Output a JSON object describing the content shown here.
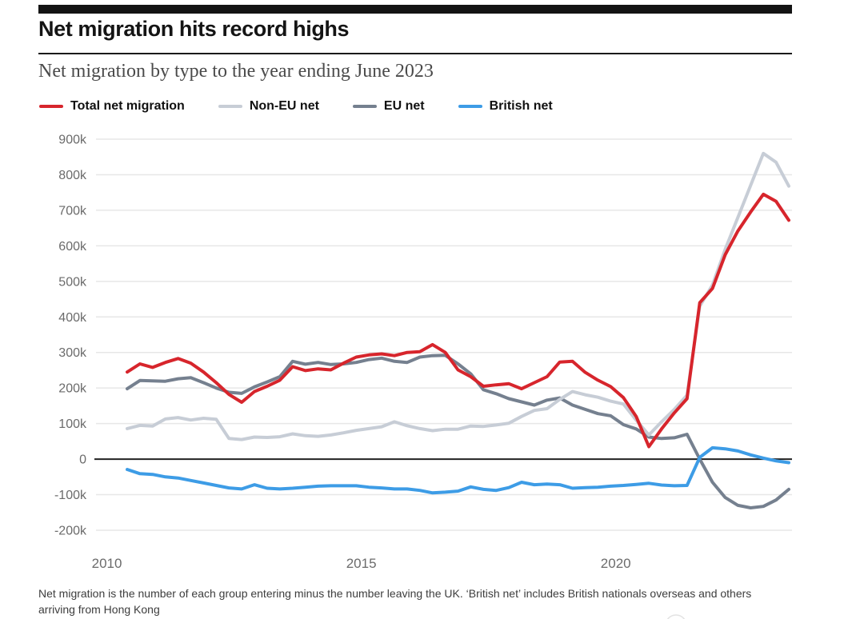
{
  "header": {
    "headline": "Net migration hits record highs",
    "subtitle": "Net migration by type to the year ending June 2023"
  },
  "footnote": {
    "text": "Net migration is the number of each group entering minus the number leaving the UK. ‘British net’ includes British nationals overseas and others arriving from Hong Kong"
  },
  "chart_data": {
    "type": "line",
    "title": "Net migration hits record highs",
    "subtitle": "Net migration by type to the year ending June 2023",
    "unit": "thousands of people, year-ending quarterly values",
    "x_start": 2010.4,
    "x_step": 0.25,
    "x_end": 2023.4,
    "ylim": [
      -200,
      900
    ],
    "grid": true,
    "legend_position": "top",
    "y_ticks": [
      {
        "label": "900k",
        "value": 900
      },
      {
        "label": "800k",
        "value": 800
      },
      {
        "label": "700k",
        "value": 700
      },
      {
        "label": "600k",
        "value": 600
      },
      {
        "label": "500k",
        "value": 500
      },
      {
        "label": "400k",
        "value": 400
      },
      {
        "label": "300k",
        "value": 300
      },
      {
        "label": "200k",
        "value": 200
      },
      {
        "label": "100k",
        "value": 100
      },
      {
        "label": "0",
        "value": 0
      },
      {
        "label": "-100k",
        "value": -100
      },
      {
        "label": "-200k",
        "value": -200
      }
    ],
    "x_ticks": [
      {
        "label": "2010",
        "year": 2010
      },
      {
        "label": "2015",
        "year": 2015
      },
      {
        "label": "2020",
        "year": 2020
      }
    ],
    "series": [
      {
        "name": "Total net migration",
        "color": "#d7252c",
        "values": [
          245,
          268,
          258,
          272,
          283,
          270,
          245,
          215,
          182,
          160,
          190,
          205,
          222,
          260,
          249,
          254,
          251,
          270,
          287,
          293,
          296,
          291,
          300,
          302,
          322,
          300,
          251,
          232,
          205,
          209,
          212,
          198,
          215,
          232,
          273,
          275,
          244,
          222,
          204,
          173,
          120,
          35,
          85,
          130,
          170,
          440,
          480,
          575,
          642,
          695,
          745,
          725,
          672
        ]
      },
      {
        "name": "Non-EU net",
        "color": "#c7cdd6",
        "values": [
          86,
          95,
          93,
          113,
          117,
          110,
          115,
          112,
          58,
          55,
          62,
          61,
          63,
          71,
          66,
          64,
          68,
          74,
          81,
          86,
          91,
          105,
          94,
          86,
          80,
          84,
          84,
          93,
          92,
          96,
          101,
          120,
          137,
          142,
          168,
          190,
          181,
          174,
          163,
          155,
          110,
          68,
          105,
          140,
          180,
          430,
          490,
          590,
          680,
          770,
          860,
          835,
          768
        ]
      },
      {
        "name": "EU net",
        "color": "#75808f",
        "values": [
          198,
          221,
          220,
          219,
          226,
          229,
          215,
          200,
          188,
          185,
          203,
          217,
          232,
          275,
          267,
          272,
          266,
          268,
          272,
          280,
          284,
          275,
          272,
          287,
          291,
          292,
          268,
          240,
          195,
          184,
          170,
          161,
          152,
          166,
          172,
          152,
          140,
          128,
          122,
          97,
          85,
          62,
          58,
          60,
          70,
          0,
          -65,
          -108,
          -130,
          -137,
          -133,
          -115,
          -85
        ]
      },
      {
        "name": "British net",
        "color": "#3d9ce6",
        "values": [
          -29,
          -41,
          -43,
          -50,
          -53,
          -60,
          -67,
          -74,
          -81,
          -84,
          -72,
          -82,
          -84,
          -82,
          -79,
          -76,
          -75,
          -75,
          -75,
          -79,
          -81,
          -84,
          -84,
          -88,
          -95,
          -93,
          -90,
          -78,
          -85,
          -88,
          -80,
          -65,
          -72,
          -70,
          -72,
          -82,
          -80,
          -79,
          -76,
          -74,
          -71,
          -68,
          -73,
          -75,
          -74,
          5,
          32,
          29,
          23,
          12,
          3,
          -5,
          -10
        ]
      }
    ]
  }
}
